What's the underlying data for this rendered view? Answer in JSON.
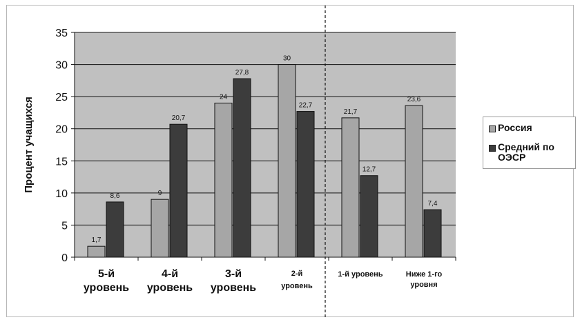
{
  "chart_data": {
    "type": "bar",
    "categories": [
      [
        "5-й",
        "уровень"
      ],
      [
        "4-й",
        "уровень"
      ],
      [
        "3-й",
        "уровень"
      ],
      [
        "2-й",
        "уровень"
      ],
      [
        "1-й уровень"
      ],
      [
        "Ниже 1-го",
        "уровня"
      ]
    ],
    "series": [
      {
        "name": "Россия",
        "values": [
          1.7,
          9,
          24,
          30,
          21.7,
          23.6
        ],
        "labels": [
          "1,7",
          "9",
          "24",
          "30",
          "21,7",
          "23,6"
        ],
        "color": "#a6a6a6"
      },
      {
        "name": "Средний по ОЭСР",
        "values": [
          8.6,
          20.7,
          27.8,
          22.7,
          12.7,
          7.4
        ],
        "labels": [
          "8,6",
          "20,7",
          "27,8",
          "22,7",
          "12,7",
          "7,4"
        ],
        "color": "#3c3c3c"
      }
    ],
    "ylabel": "Процент учащихся",
    "ylim": [
      0,
      35
    ],
    "yticks": [
      0,
      5,
      10,
      15,
      20,
      25,
      30,
      35
    ],
    "grid": true,
    "plot_background": "#c0c0c0",
    "legend_position": "right",
    "divider": "dashed vertical line between 2-й уровень and 1-й уровень"
  },
  "legend": {
    "russia": "Россия",
    "oecd": "Средний по ОЭСР"
  }
}
